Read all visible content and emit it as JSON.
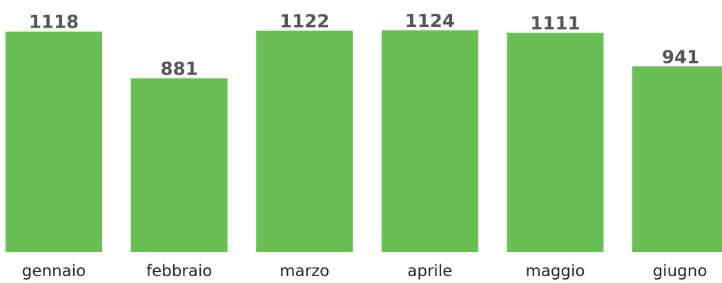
{
  "chart_data": {
    "type": "bar",
    "categories": [
      "gennaio",
      "febbraio",
      "marzo",
      "aprile",
      "maggio",
      "giugno"
    ],
    "values": [
      1118,
      881,
      1122,
      1124,
      1111,
      941
    ],
    "color": "#6abf54"
  }
}
